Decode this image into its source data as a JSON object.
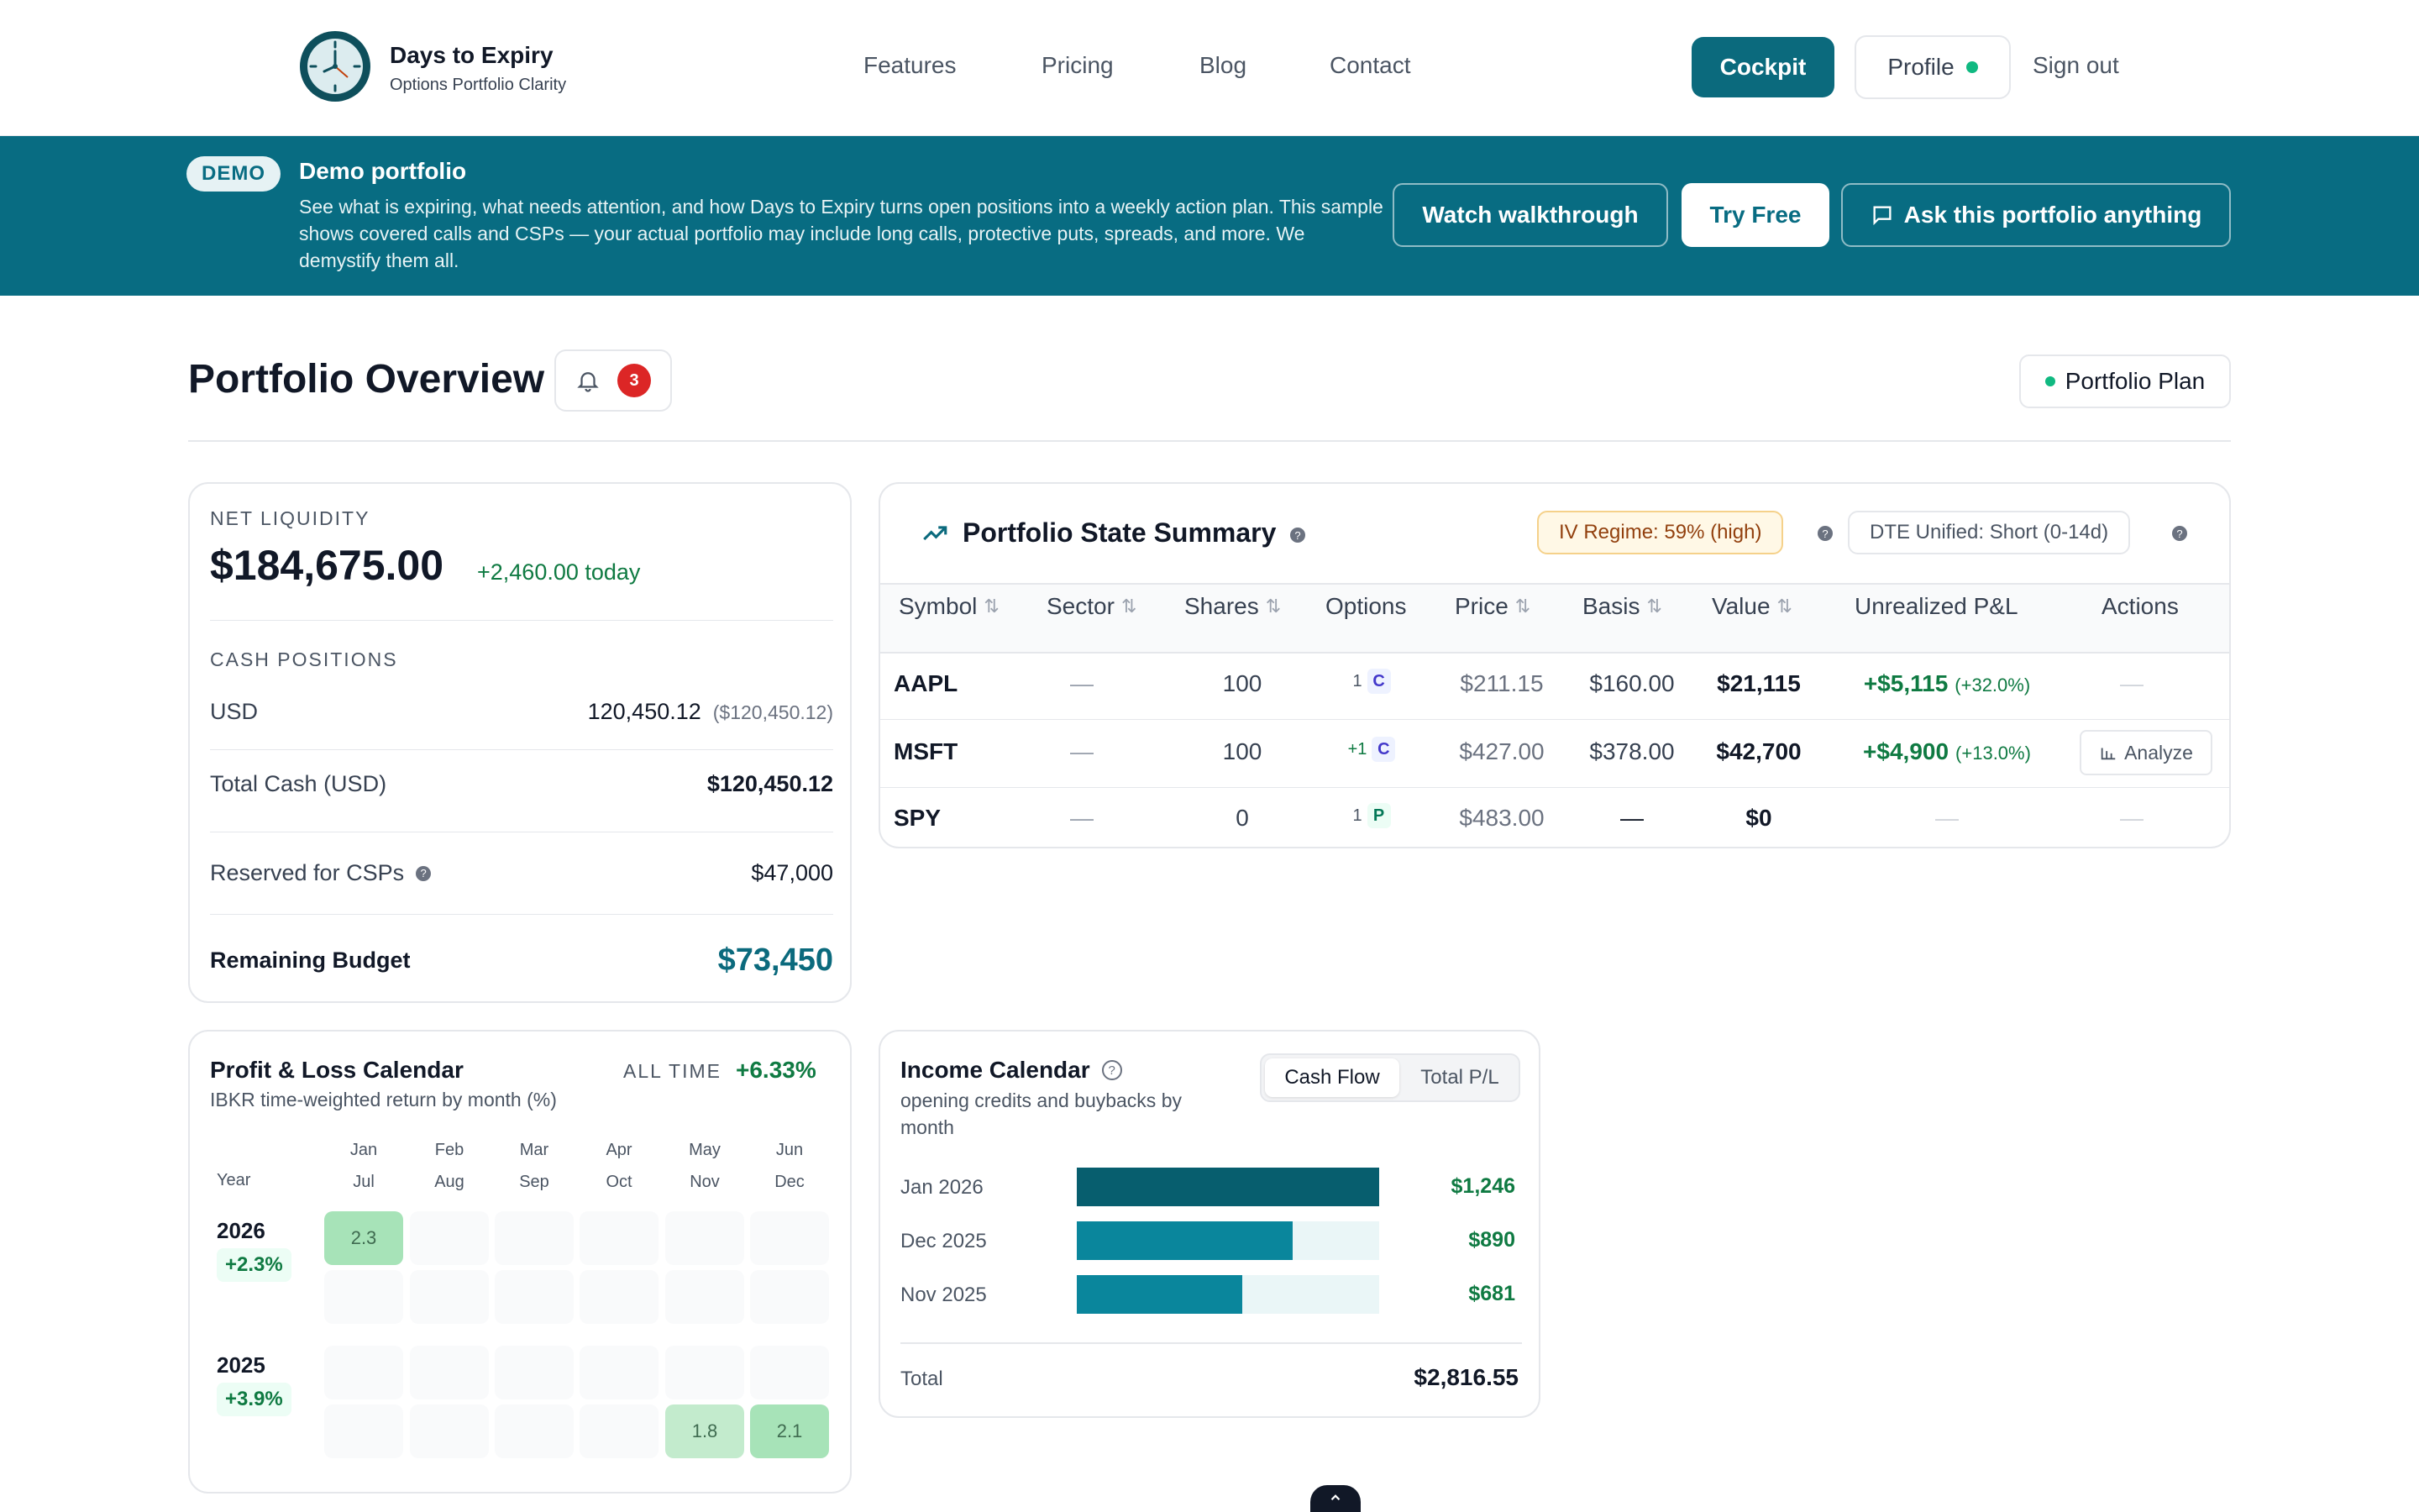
{
  "nav": {
    "brand_title": "Days to Expiry",
    "brand_subtitle": "Options Portfolio Clarity",
    "links": [
      "Features",
      "Pricing",
      "Blog",
      "Contact"
    ],
    "cockpit_label": "Cockpit",
    "profile_label": "Profile",
    "signout_label": "Sign out"
  },
  "banner": {
    "pill": "DEMO",
    "title": "Demo portfolio",
    "text": "See what is expiring, what needs attention, and how Days to Expiry turns open positions into a weekly action plan. This sample shows covered calls and CSPs — your actual portfolio may include long calls, protective puts, spreads, and more. We demystify them all.",
    "watch_label": "Watch walkthrough",
    "try_label": "Try Free",
    "ask_label": "Ask this portfolio anything"
  },
  "overview": {
    "title": "Portfolio Overview",
    "alerts_count": "3",
    "plan_label": "Portfolio Plan"
  },
  "liquidity": {
    "label": "NET LIQUIDITY",
    "value": "$184,675.00",
    "change": "+2,460.00 today",
    "cash_label": "CASH POSITIONS",
    "usd_label": "USD",
    "usd_value": "120,450.12",
    "usd_converted": "($120,450.12)",
    "total_cash_label": "Total Cash (USD)",
    "total_cash_value": "$120,450.12",
    "reserved_label": "Reserved for CSPs",
    "reserved_value": "$47,000",
    "remaining_label": "Remaining Budget",
    "remaining_value": "$73,450"
  },
  "summary": {
    "title": "Portfolio State Summary",
    "iv_badge": "IV Regime: 59% (high)",
    "dte_badge": "DTE Unified: Short (0-14d)",
    "columns": [
      "Symbol",
      "Sector",
      "Shares",
      "Options",
      "Price",
      "Basis",
      "Value",
      "Unrealized P&L",
      "Actions"
    ],
    "rows": [
      {
        "symbol": "AAPL",
        "sector": "—",
        "shares": "100",
        "opt_count": "1",
        "opt_type": "C",
        "price": "$211.15",
        "basis": "$160.00",
        "value": "$21,115",
        "pnl": "+$5,115",
        "pnl_pct": "(+32.0%)",
        "action": "—"
      },
      {
        "symbol": "MSFT",
        "sector": "—",
        "shares": "100",
        "opt_count": "+1",
        "opt_type": "C",
        "price": "$427.00",
        "basis": "$378.00",
        "value": "$42,700",
        "pnl": "+$4,900",
        "pnl_pct": "(+13.0%)",
        "action": "Analyze"
      },
      {
        "symbol": "SPY",
        "sector": "—",
        "shares": "0",
        "opt_count": "1",
        "opt_type": "P",
        "price": "$483.00",
        "basis": "—",
        "value": "$0",
        "pnl": "—",
        "pnl_pct": "",
        "action": "—"
      }
    ]
  },
  "pl_calendar": {
    "title": "Profit & Loss Calendar",
    "subtitle": "IBKR time-weighted return by month (%)",
    "all_time_label": "ALL TIME",
    "all_time_value": "+6.33%",
    "year_label": "Year",
    "months_top": [
      "Jan",
      "Feb",
      "Mar",
      "Apr",
      "May",
      "Jun"
    ],
    "months_bottom": [
      "Jul",
      "Aug",
      "Sep",
      "Oct",
      "Nov",
      "Dec"
    ],
    "years": [
      {
        "year": "2026",
        "total": "+2.3%",
        "cells": {
          "Jan": "2.3"
        }
      },
      {
        "year": "2025",
        "total": "+3.9%",
        "cells": {
          "Nov": "1.8",
          "Dec": "2.1"
        }
      }
    ]
  },
  "income": {
    "title": "Income Calendar",
    "subtitle": "opening credits and buybacks by month",
    "tab_cash": "Cash Flow",
    "tab_total": "Total P/L",
    "rows": [
      {
        "month": "Jan 2026",
        "value": "$1,246",
        "amount": 1246,
        "color": "#075e6e"
      },
      {
        "month": "Dec 2025",
        "value": "$890",
        "amount": 890,
        "color": "#0a869c"
      },
      {
        "month": "Nov 2025",
        "value": "$681",
        "amount": 681,
        "color": "#0a869c"
      }
    ],
    "total_label": "Total",
    "total_value": "$2,816.55"
  },
  "colors": {
    "brand": "#086c82",
    "positive": "#0f7a42",
    "alert": "#dc2626"
  }
}
